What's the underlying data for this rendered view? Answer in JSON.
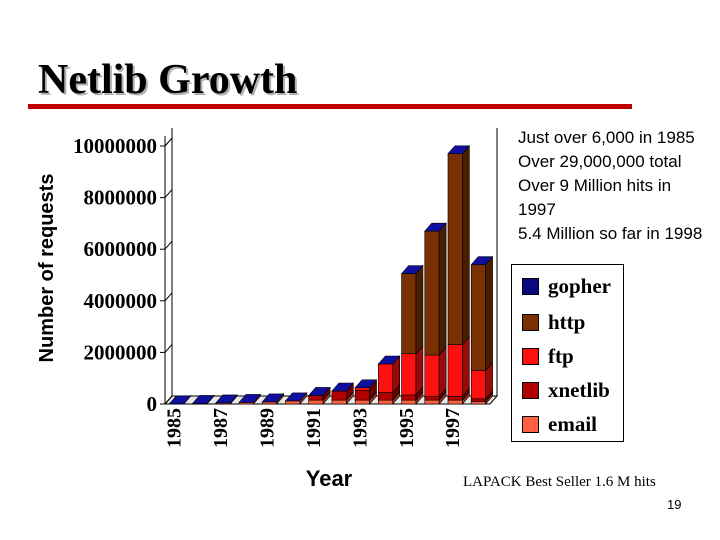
{
  "slide": {
    "title": "Netlib Growth",
    "page_number": "19",
    "footer_note": "LAPACK Best Seller 1.6 M hits"
  },
  "notes": [
    "Just over 6,000 in 1985",
    "Over 29,000,000 total",
    "Over 9 Million hits in",
    "1997",
    "5.4 Million so far in 1998"
  ],
  "colors": {
    "title_rule": "#c00000",
    "gopher": "#0a0a80",
    "http": "#7a3000",
    "ftp": "#ff1010",
    "xnetlib": "#b00000",
    "email": "#ff6040"
  },
  "chart_data": {
    "type": "bar",
    "stacked": true,
    "three_d": true,
    "xlabel": "Year",
    "ylabel": "Number of requests",
    "ylim": [
      0,
      10000000
    ],
    "yticks": [
      0,
      2000000,
      4000000,
      6000000,
      8000000,
      10000000
    ],
    "ytick_labels": [
      "0",
      "2000000",
      "4000000",
      "6000000",
      "8000000",
      "10000000"
    ],
    "categories": [
      "1985",
      "1986",
      "1987",
      "1988",
      "1989",
      "1990",
      "1991",
      "1992",
      "1993",
      "1994",
      "1995",
      "1996",
      "1997",
      "1998"
    ],
    "xtick_labels": [
      "1985",
      "",
      "1987",
      "",
      "1989",
      "",
      "1991",
      "",
      "1993",
      "",
      "1995",
      "",
      "1997",
      ""
    ],
    "legend_position": "right",
    "series": [
      {
        "name": "email",
        "color": "#ff6040",
        "values": [
          6000,
          20000,
          40000,
          60000,
          80000,
          120000,
          150000,
          150000,
          150000,
          150000,
          150000,
          150000,
          150000,
          100000
        ]
      },
      {
        "name": "xnetlib",
        "color": "#b00000",
        "values": [
          0,
          0,
          0,
          0,
          0,
          0,
          180000,
          350000,
          380000,
          300000,
          200000,
          150000,
          150000,
          100000
        ]
      },
      {
        "name": "ftp",
        "color": "#ff1010",
        "values": [
          0,
          0,
          0,
          0,
          0,
          0,
          0,
          0,
          100000,
          1100000,
          1600000,
          1600000,
          2000000,
          1100000
        ]
      },
      {
        "name": "http",
        "color": "#7a3000",
        "values": [
          0,
          0,
          0,
          0,
          0,
          0,
          0,
          0,
          0,
          0,
          3100000,
          4800000,
          7400000,
          4100000
        ]
      },
      {
        "name": "gopher",
        "color": "#0a0a80",
        "values": [
          0,
          0,
          0,
          0,
          0,
          0,
          0,
          0,
          0,
          0,
          0,
          0,
          0,
          0
        ]
      }
    ],
    "legend_order": [
      "gopher",
      "http",
      "ftp",
      "xnetlib",
      "email"
    ]
  }
}
